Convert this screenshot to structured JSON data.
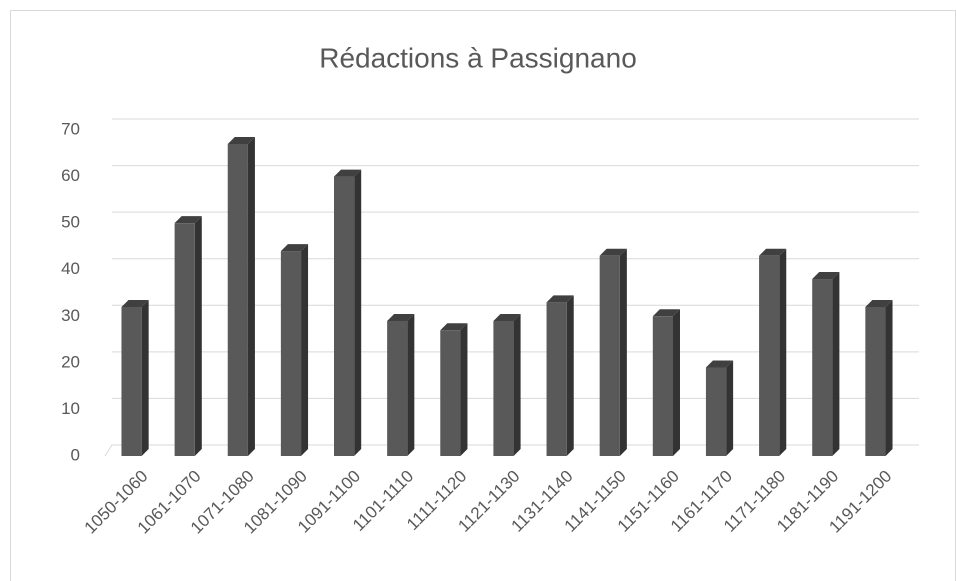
{
  "chart_data": {
    "type": "bar",
    "title": "Rédactions à Passignano",
    "categories": [
      "1050-1060",
      "1061-1070",
      "1071-1080",
      "1081-1090",
      "1091-1100",
      "1101-1110",
      "1111-1120",
      "1121-1130",
      "1131-1140",
      "1141-1150",
      "1151-1160",
      "1161-1170",
      "1171-1180",
      "1181-1190",
      "1191-1200"
    ],
    "values": [
      32,
      50,
      67,
      44,
      60,
      29,
      27,
      29,
      33,
      43,
      30,
      19,
      43,
      38,
      32
    ],
    "color": "#595959",
    "ylim": [
      0,
      70
    ],
    "yticks": [
      0,
      10,
      20,
      30,
      40,
      50,
      60,
      70
    ],
    "grid": true
  }
}
